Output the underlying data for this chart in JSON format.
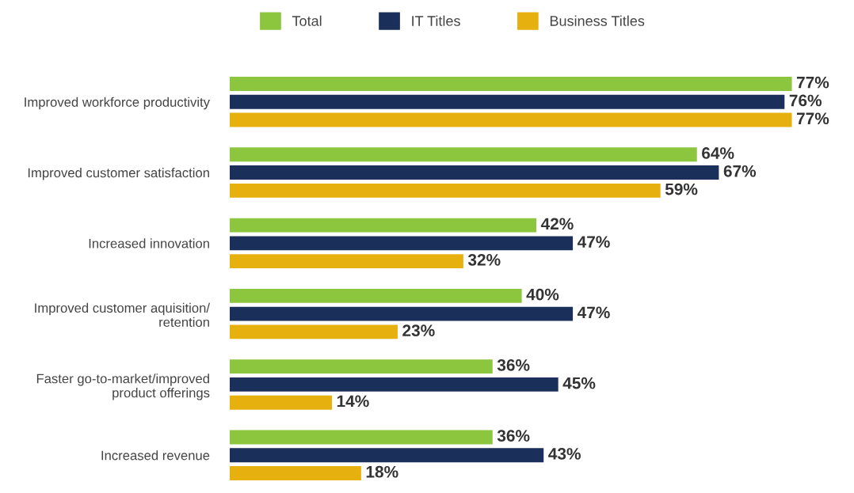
{
  "chart_data": {
    "type": "bar",
    "orientation": "horizontal",
    "categories": [
      "Improved workforce productivity",
      "Improved customer satisfaction",
      "Increased innovation",
      "Improved customer aquisition/\nretention",
      "Faster go-to-market/improved\nproduct offerings",
      "Increased revenue"
    ],
    "series": [
      {
        "name": "Total",
        "color": "#8cc63f",
        "values": [
          77,
          64,
          42,
          40,
          36,
          36
        ],
        "value_labels": [
          "77%",
          "64%",
          "42%",
          "40%",
          "36%",
          "36%"
        ]
      },
      {
        "name": "IT Titles",
        "color": "#1b2f5b",
        "values": [
          76,
          67,
          47,
          47,
          45,
          43
        ],
        "value_labels": [
          "76%",
          "67%",
          "47%",
          "47%",
          "45%",
          "43%"
        ]
      },
      {
        "name": "Business Titles",
        "color": "#e6b00e",
        "values": [
          77,
          59,
          32,
          23,
          14,
          18
        ],
        "value_labels": [
          "77%",
          "59%",
          "32%",
          "23%",
          "14%",
          "18%"
        ]
      }
    ],
    "tick_labels": "y",
    "grid": false,
    "legend": "top"
  }
}
